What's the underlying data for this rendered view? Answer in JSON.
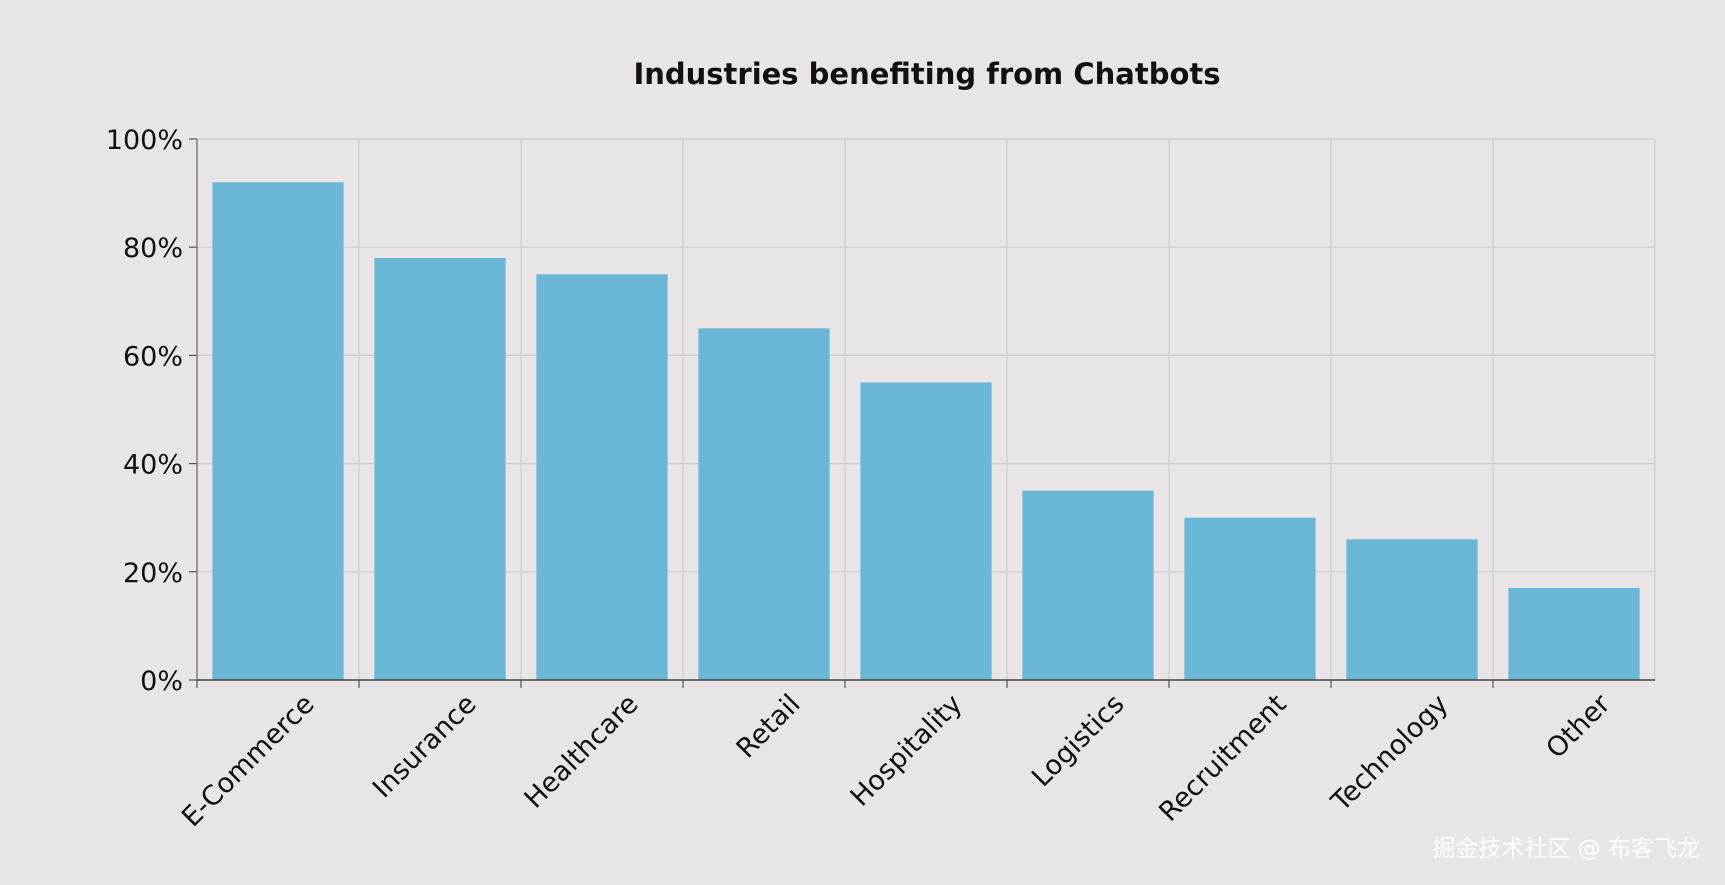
{
  "chart_data": {
    "type": "bar",
    "title": "Industries benefiting from Chatbots",
    "xlabel": "",
    "ylabel": "",
    "categories": [
      "E-Commerce",
      "Insurance",
      "Healthcare",
      "Retail",
      "Hospitality",
      "Logistics",
      "Recruitment",
      "Technology",
      "Other"
    ],
    "values": [
      92,
      78,
      75,
      65,
      55,
      35,
      30,
      26,
      17
    ],
    "ylim": [
      0,
      100
    ],
    "yticks": [
      0,
      20,
      40,
      60,
      80,
      100
    ],
    "ytick_labels": [
      "0%",
      "20%",
      "40%",
      "60%",
      "80%",
      "100%"
    ],
    "grid": true,
    "legend": "none",
    "bar_color": "#69b6d7",
    "grid_color": "#cfcbcc",
    "background": "#e9e5e6"
  },
  "watermark": "掘金技术社区 @ 布客飞龙"
}
